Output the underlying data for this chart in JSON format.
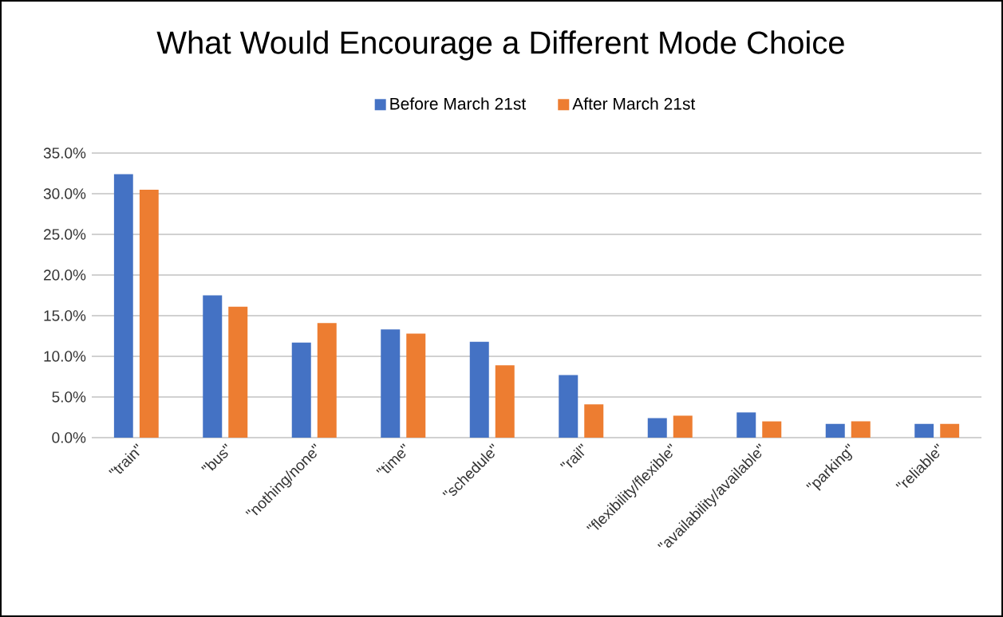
{
  "chart_data": {
    "type": "bar",
    "title": "What Would Encourage a Different Mode Choice",
    "categories": [
      "\"train\"",
      "\"bus\"",
      "\"nothing/none\"",
      "\"time\"",
      "\"schedule\"",
      "\"rail\"",
      "\"flexibility/flexible\"",
      "\"availability/available\"",
      "\"parking\"",
      "\"reliable\""
    ],
    "series": [
      {
        "name": "Before March 21st",
        "color": "#4472c4",
        "values": [
          32.4,
          17.5,
          11.7,
          13.3,
          11.8,
          7.7,
          2.4,
          3.1,
          1.7,
          1.7
        ]
      },
      {
        "name": "After March 21st",
        "color": "#ed7d31",
        "values": [
          30.5,
          16.1,
          14.1,
          12.8,
          8.9,
          4.1,
          2.7,
          2.0,
          2.0,
          1.7
        ]
      }
    ],
    "ylim": [
      0,
      35
    ],
    "yticks": [
      {
        "value": 0,
        "label": "0.0%"
      },
      {
        "value": 5,
        "label": "5.0%"
      },
      {
        "value": 10,
        "label": "10.0%"
      },
      {
        "value": 15,
        "label": "15.0%"
      },
      {
        "value": 20,
        "label": "20.0%"
      },
      {
        "value": 25,
        "label": "25.0%"
      },
      {
        "value": 30,
        "label": "30.0%"
      },
      {
        "value": 35,
        "label": "35.0%"
      }
    ],
    "grid": "y",
    "legend": "top"
  }
}
